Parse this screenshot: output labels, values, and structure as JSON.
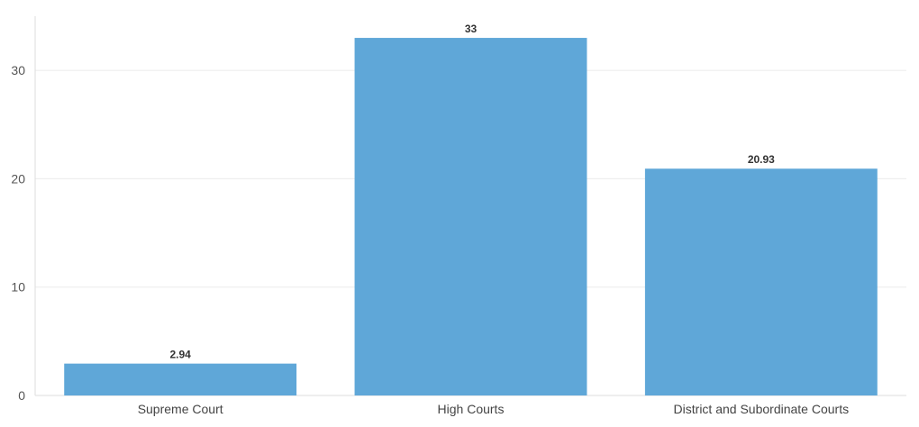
{
  "chart_data": {
    "type": "bar",
    "categories": [
      "Supreme Court",
      "High Courts",
      "District and Subordinate Courts"
    ],
    "values": [
      2.94,
      33,
      20.93
    ],
    "data_labels": [
      "2.94",
      "33",
      "20.93"
    ],
    "ylim": [
      0,
      35
    ],
    "yticks": [
      0,
      10,
      20,
      30
    ],
    "ytick_labels": [
      "0",
      "10",
      "20",
      "30"
    ],
    "grid": true,
    "legend": "none",
    "colors": {
      "bar": "#5fa7d8",
      "grid": "#ebebeb",
      "axis": "#dddddd"
    }
  }
}
